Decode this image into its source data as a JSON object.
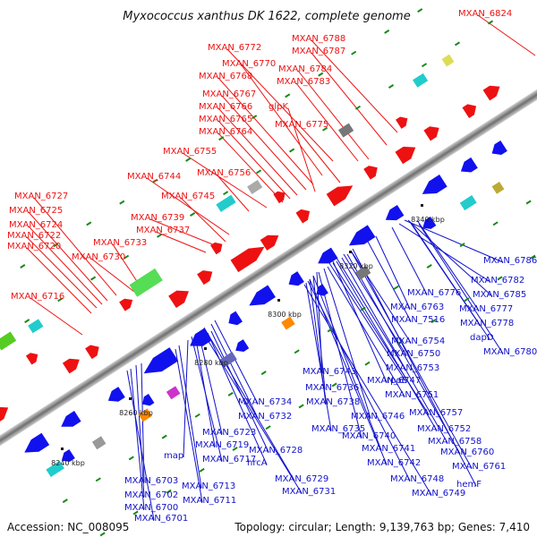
{
  "title": "Myxococcus xanthus DK 1622, complete genome",
  "footer": {
    "accession": "Accession: NC_008095",
    "topology": "Topology: circular; Length: 9,139,763 bp; Genes: 7,410"
  },
  "colors": {
    "forward_feature": "#ee1111",
    "reverse_feature": "#1111ee",
    "backbone": "#8c8c8c",
    "tick": "#1a8a1a",
    "red_label": "#ee1111",
    "blue_label": "#1111cc"
  },
  "kbp_ticks": [
    "8240 kbp",
    "8260 kbp",
    "8280 kbp",
    "8300 kbp",
    "8320 kbp",
    "8340 kbp"
  ],
  "labels_forward": [
    "MXAN_6824",
    "MXAN_6788",
    "MXAN_6787",
    "MXAN_6772",
    "MXAN_6784",
    "MXAN_6770",
    "MXAN_6768",
    "MXAN_6783",
    "MXAN_6767",
    "glpK",
    "MXAN_6766",
    "MXAN_6765",
    "MXAN_6775",
    "MXAN_6764",
    "MXAN_6755",
    "MXAN_6744",
    "MXAN_6756",
    "MXAN_6727",
    "MXAN_6745",
    "MXAN_6725",
    "MXAN_6739",
    "MXAN_6724",
    "MXAN_6737",
    "MXAN_6722",
    "MXAN_6733",
    "MXAN_6720",
    "MXAN_6730",
    "MXAN_6716"
  ],
  "labels_reverse": [
    "MXAN_6786",
    "MXAN_6782",
    "MXAN_6776",
    "MXAN_6785",
    "MXAN_6763",
    "MXAN_6777",
    "MXAN_7516",
    "MXAN_6778",
    "dapD",
    "MXAN_6754",
    "MXAN_6780",
    "MXAN_6750",
    "MXAN_6753",
    "MXAN_6743",
    "MXAN_6747",
    "rpoE",
    "MXAN_6736",
    "MXAN_6751",
    "MXAN_6738",
    "MXAN_6746",
    "MXAN_6757",
    "MXAN_6734",
    "MXAN_6740",
    "MXAN_6752",
    "MXAN_6732",
    "MXAN_6735",
    "MXAN_6758",
    "MXAN_6723",
    "MXAN_6741",
    "MXAN_6760",
    "MXAN_6719",
    "MXAN_6742",
    "MXAN_6761",
    "map",
    "MXAN_6728",
    "MXAN_6717",
    "hrcA",
    "hemF",
    "MXAN_6748",
    "MXAN_6729",
    "MXAN_6703",
    "MXAN_6713",
    "MXAN_6749",
    "MXAN_6702",
    "MXAN_6731",
    "MXAN_6711",
    "MXAN_6700",
    "MXAN_6701"
  ]
}
